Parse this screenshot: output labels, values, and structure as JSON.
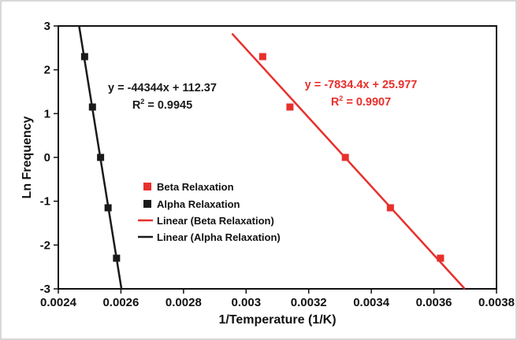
{
  "chart_data": {
    "type": "scatter",
    "xlabel": "1/Temperature (1/K)",
    "ylabel": "Ln Frequency",
    "xlim": [
      0.0024,
      0.0038
    ],
    "ylim": [
      -3,
      3
    ],
    "x_ticks": [
      "0.0024",
      "0.0026",
      "0.0028",
      "0.003",
      "0.0032",
      "0.0034",
      "0.0036",
      "0.0038"
    ],
    "y_ticks": [
      "3",
      "2",
      "1",
      "0",
      "-1",
      "-2",
      "-3"
    ],
    "grid": false,
    "legend_position": "center-left",
    "series": [
      {
        "name": "Beta Relaxation",
        "color": "#e8302c",
        "marker": "square",
        "points": [
          {
            "x": 0.003053,
            "y": 2.3
          },
          {
            "x": 0.00314,
            "y": 1.15
          },
          {
            "x": 0.003317,
            "y": 0.0
          },
          {
            "x": 0.003461,
            "y": -1.15
          },
          {
            "x": 0.003621,
            "y": -2.3
          }
        ]
      },
      {
        "name": "Alpha Relaxation",
        "color": "#1a1a1a",
        "marker": "square",
        "points": [
          {
            "x": 0.002484,
            "y": 2.3
          },
          {
            "x": 0.002509,
            "y": 1.15
          },
          {
            "x": 0.002535,
            "y": 0.0
          },
          {
            "x": 0.002559,
            "y": -1.15
          },
          {
            "x": 0.002586,
            "y": -2.3
          }
        ]
      }
    ],
    "trendlines": [
      {
        "name": "Linear (Beta Relaxation)",
        "color": "#e8302c",
        "slope": -7834.4,
        "intercept": 25.977,
        "equation": "y = -7834.4x + 25.977",
        "r2_prefix": "R",
        "r2_exp": "2",
        "r2_value": " = 0.9907"
      },
      {
        "name": "Linear (Alpha Relaxation)",
        "color": "#1a1a1a",
        "slope": -44344,
        "intercept": 112.37,
        "equation": "y = -44344x + 112.37",
        "r2_prefix": "R",
        "r2_exp": "2",
        "r2_value": " = 0.9945"
      }
    ]
  }
}
